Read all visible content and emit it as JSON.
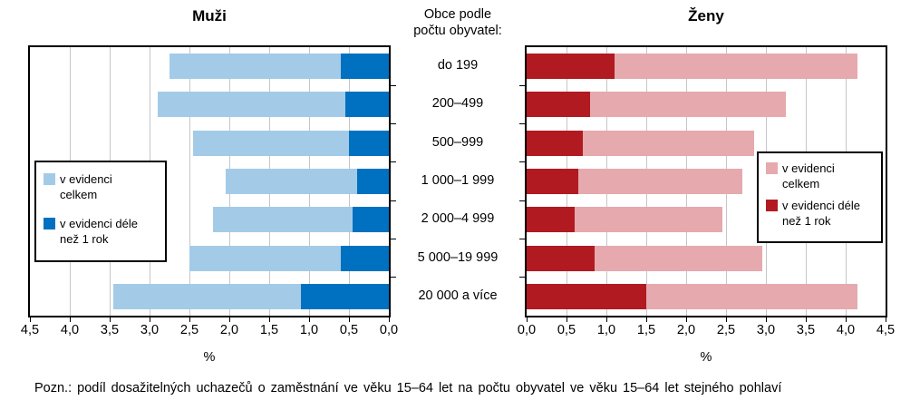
{
  "center": {
    "header": "Obce podle\npočtu obyvatel:"
  },
  "footnote": "Pozn.: podíl dosažitelných uchazečů o zaměstnání ve věku 15–64 let na počtu obyvatel ve věku 15–64 let stejného pohlaví",
  "colors": {
    "men_total": "#A3CBE8",
    "men_longterm": "#0071C0",
    "women_total": "#E5A9AE",
    "women_longterm": "#B11A21",
    "gridline": "#C6C6C6"
  },
  "chart_data": [
    {
      "type": "bar",
      "title": "Muži",
      "orientation": "horizontal",
      "axis_reversed": true,
      "xlabel": "%",
      "xlim": [
        0,
        4.5
      ],
      "tick_labels": [
        "4,5",
        "4,0",
        "3,5",
        "3,0",
        "2,5",
        "2,0",
        "1,5",
        "1,0",
        "0,5",
        "0,0"
      ],
      "categories": [
        "do 199",
        "200–499",
        "500–999",
        "1 000–1 999",
        "2 000–4 999",
        "5 000–19 999",
        "20 000 a více"
      ],
      "series": [
        {
          "name": "v evidenci celkem",
          "color": "#A3CBE8",
          "values": [
            2.75,
            2.9,
            2.45,
            2.05,
            2.2,
            2.5,
            3.45
          ]
        },
        {
          "name": "v evidenci déle než 1 rok",
          "color": "#0071C0",
          "values": [
            0.6,
            0.55,
            0.5,
            0.4,
            0.45,
            0.6,
            1.1
          ]
        }
      ],
      "legend_position": "inside-left",
      "grid": true
    },
    {
      "type": "bar",
      "title": "Ženy",
      "orientation": "horizontal",
      "axis_reversed": false,
      "xlabel": "%",
      "xlim": [
        0,
        4.5
      ],
      "tick_labels": [
        "0,0",
        "0,5",
        "1,0",
        "1,5",
        "2,0",
        "2,5",
        "3,0",
        "3,5",
        "4,0",
        "4,5"
      ],
      "categories": [
        "do 199",
        "200–499",
        "500–999",
        "1 000–1 999",
        "2 000–4 999",
        "5 000–19 999",
        "20 000 a více"
      ],
      "series": [
        {
          "name": "v evidenci celkem",
          "color": "#E5A9AE",
          "values": [
            4.15,
            3.25,
            2.85,
            2.7,
            2.45,
            2.95,
            4.15
          ]
        },
        {
          "name": "v evidenci déle než 1 rok",
          "color": "#B11A21",
          "values": [
            1.1,
            0.8,
            0.7,
            0.65,
            0.6,
            0.85,
            1.5
          ]
        }
      ],
      "legend_position": "inside-right",
      "grid": true
    }
  ]
}
